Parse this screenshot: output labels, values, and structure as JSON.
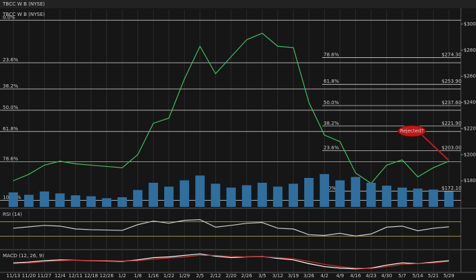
{
  "chart_data": [
    {
      "type": "line",
      "title": "TBCC W B (NYSE)",
      "categories": [
        "11/13",
        "11/20",
        "11/27",
        "12/4",
        "12/11",
        "12/18",
        "12/26",
        "1/2",
        "1/8",
        "1/16",
        "1/22",
        "1/29",
        "2/5",
        "2/12",
        "2/20",
        "2/26",
        "3/5",
        "3/12",
        "3/19",
        "3/26",
        "4/2",
        "4/9",
        "4/16",
        "4/23",
        "4/30",
        "5/7",
        "5/14",
        "5/21",
        "5/29"
      ],
      "series": [
        {
          "color": "#3fbf5f",
          "values": [
            180,
            185,
            192,
            195,
            193,
            192,
            191,
            190,
            200,
            224,
            228,
            258,
            283,
            262,
            275,
            288,
            293,
            283,
            282,
            240,
            215,
            210,
            186,
            178,
            192,
            196,
            183,
            190,
            195
          ]
        },
        {
          "color": "#2f6f9f",
          "axis": "y2",
          "values": [
            3,
            2.5,
            3.2,
            2.8,
            2.4,
            2.2,
            1.8,
            2,
            3.5,
            5,
            4.2,
            5.5,
            6.5,
            4.8,
            4,
            4.5,
            5,
            4.2,
            4.8,
            6,
            6.8,
            5.5,
            6.2,
            5,
            4.4,
            4,
            3.8,
            3.6,
            3.2
          ]
        }
      ],
      "ylim": [
        160,
        310
      ],
      "y2lim": [
        0,
        10
      ],
      "yticks": [
        {
          "value": 180,
          "label": "$180"
        },
        {
          "value": 200,
          "label": "$200"
        },
        {
          "value": 220,
          "label": "$220"
        },
        {
          "value": 240,
          "label": "$240"
        },
        {
          "value": 260,
          "label": "$260"
        },
        {
          "value": 280,
          "label": "$280"
        },
        {
          "value": 300,
          "label": "$300"
        }
      ],
      "fib_left": [
        {
          "value": 303,
          "label": "0.0%"
        },
        {
          "value": 270.4,
          "label": "23.6%"
        },
        {
          "value": 250.3,
          "label": "38.2%"
        },
        {
          "value": 234,
          "label": "50.0%"
        },
        {
          "value": 217.7,
          "label": "61.8%"
        },
        {
          "value": 194.5,
          "label": "78.6%"
        },
        {
          "value": 165,
          "label": "100.0%"
        }
      ],
      "fib_right": [
        {
          "value": 274.3,
          "label": "78.6%",
          "price_label": "$274.30"
        },
        {
          "value": 253.9,
          "label": "61.8%",
          "price_label": "$253.90"
        },
        {
          "value": 237.6,
          "label": "50.0%",
          "price_label": "$237.60"
        },
        {
          "value": 221.9,
          "label": "38.2%",
          "price_label": "$221.90"
        },
        {
          "value": 203,
          "label": "23.6%",
          "price_label": "$203.00"
        },
        {
          "value": 172.1,
          "label": "0.0%",
          "price_label": "$172.10"
        }
      ],
      "annotation": "Rejected?"
    },
    {
      "type": "line",
      "title": "RSI (14)",
      "ylim": [
        0,
        100
      ],
      "levels": [
        30,
        70
      ],
      "series": [
        {
          "color": "#cccccc",
          "values": [
            52,
            56,
            60,
            58,
            50,
            48,
            47,
            46,
            62,
            72,
            66,
            74,
            76,
            55,
            60,
            66,
            68,
            52,
            50,
            34,
            32,
            38,
            30,
            36,
            55,
            58,
            45,
            52,
            56
          ]
        }
      ]
    },
    {
      "type": "line",
      "title": "MACD (12, 26, 9)",
      "ylim": [
        -12,
        12
      ],
      "series": [
        {
          "color": "#ffffff",
          "values": [
            -2,
            -1,
            1,
            2,
            1.5,
            1,
            0.5,
            0,
            2,
            5,
            6,
            8,
            10,
            7,
            5,
            6,
            6.5,
            4,
            2,
            -3,
            -7,
            -9,
            -10,
            -9,
            -5,
            -2,
            -3,
            -1,
            1
          ]
        },
        {
          "color": "#d03030",
          "values": [
            -3,
            -2,
            -0.5,
            1,
            1.5,
            1.3,
            1,
            0.5,
            1,
            3,
            4.5,
            6,
            8,
            8,
            6.5,
            6,
            6.2,
            5,
            3.5,
            0,
            -4,
            -7,
            -9,
            -9.5,
            -7,
            -4,
            -3,
            -2,
            0
          ]
        }
      ]
    }
  ]
}
